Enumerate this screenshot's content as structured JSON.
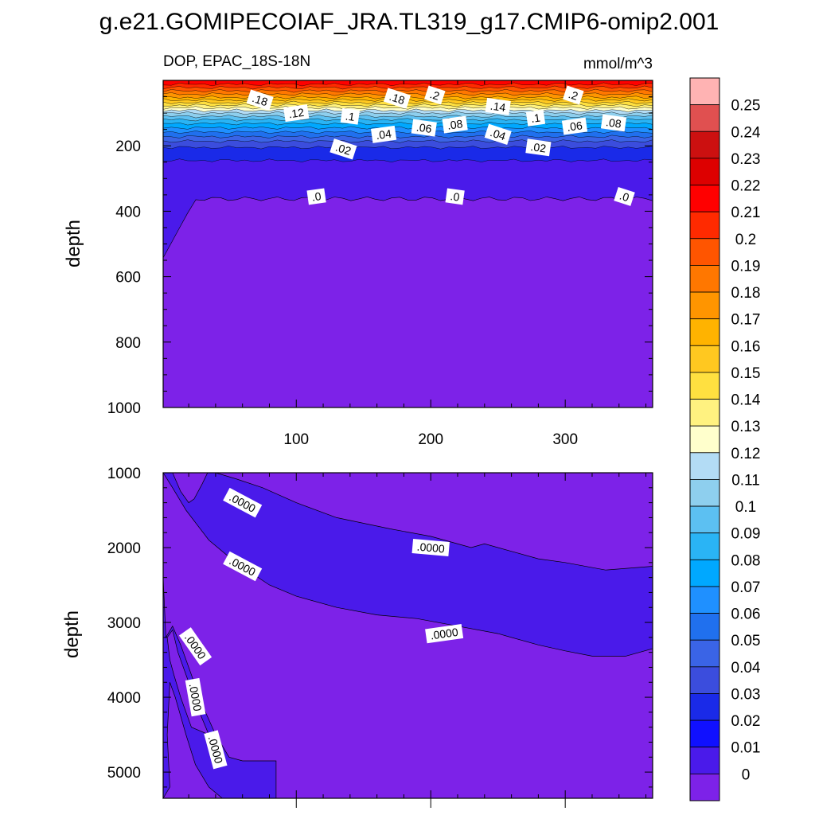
{
  "title": "g.e21.GOMIPECOIAF_JRA.TL319_g17.CMIP6-omip2.001",
  "colorbar": {
    "levels": [
      "0.25",
      "0.24",
      "0.23",
      "0.22",
      "0.21",
      "0.2",
      "0.19",
      "0.18",
      "0.17",
      "0.16",
      "0.15",
      "0.14",
      "0.13",
      "0.12",
      "0.11",
      "0.1",
      "0.09",
      "0.08",
      "0.07",
      "0.06",
      "0.05",
      "0.04",
      "0.03",
      "0.02",
      "0.01",
      "0"
    ],
    "colors": [
      "#ffb3b3",
      "#e05050",
      "#cc1010",
      "#dd0000",
      "#ff0000",
      "#ff2a00",
      "#ff5500",
      "#ff7700",
      "#ff9500",
      "#ffb300",
      "#ffc820",
      "#ffe040",
      "#fff280",
      "#ffffcc",
      "#b3dcf5",
      "#8ecfee",
      "#5cc0f2",
      "#2ab4f5",
      "#00a8ff",
      "#1f90ff",
      "#2070ee",
      "#3a64e6",
      "#3b4ddd",
      "#1a2ae8",
      "#1010ff",
      "#4a1aea",
      "#7d22e8"
    ]
  },
  "chart_data": [
    {
      "type": "contour",
      "name": "upper",
      "subtitle": "DOP, EPAC_18S-18N",
      "units": "mmol/m^3",
      "xlabel": "",
      "ylabel": "depth",
      "xlim": [
        1,
        365
      ],
      "ylim": [
        1000,
        0
      ],
      "xticks": [
        100,
        200,
        300
      ],
      "yticks": [
        200,
        400,
        600,
        800,
        1000
      ],
      "contour_labels": [
        {
          "text": ".18",
          "x": 73,
          "y": 60
        },
        {
          "text": ".12",
          "x": 100,
          "y": 100
        },
        {
          "text": ".1",
          "x": 140,
          "y": 110
        },
        {
          "text": ".18",
          "x": 175,
          "y": 55
        },
        {
          "text": ".04",
          "x": 165,
          "y": 165
        },
        {
          "text": ".06",
          "x": 195,
          "y": 145
        },
        {
          "text": ".2",
          "x": 203,
          "y": 45
        },
        {
          "text": ".08",
          "x": 218,
          "y": 135
        },
        {
          "text": ".14",
          "x": 250,
          "y": 80
        },
        {
          "text": ".04",
          "x": 250,
          "y": 165
        },
        {
          "text": ".1",
          "x": 278,
          "y": 115
        },
        {
          "text": ".02",
          "x": 280,
          "y": 205
        },
        {
          "text": ".2",
          "x": 306,
          "y": 45
        },
        {
          "text": ".06",
          "x": 307,
          "y": 140
        },
        {
          "text": ".08",
          "x": 336,
          "y": 130
        },
        {
          "text": ".02",
          "x": 135,
          "y": 210
        },
        {
          "text": ".0",
          "x": 115,
          "y": 355
        },
        {
          "text": ".0",
          "x": 218,
          "y": 355
        },
        {
          "text": ".0",
          "x": 344,
          "y": 355
        }
      ]
    },
    {
      "type": "contour",
      "name": "lower",
      "xlabel": "",
      "ylabel": "depth",
      "xlim": [
        1,
        365
      ],
      "ylim": [
        1000,
        5350
      ],
      "yticks": [
        1000,
        2000,
        3000,
        4000,
        5000
      ],
      "contour_labels": [
        {
          "text": ".0000",
          "x": 60,
          "y": 1400
        },
        {
          "text": ".0000",
          "x": 60,
          "y": 2250
        },
        {
          "text": ".0000",
          "x": 200,
          "y": 2000
        },
        {
          "text": ".0000",
          "x": 210,
          "y": 3150
        },
        {
          "text": ".0000",
          "x": 25,
          "y": 3320
        },
        {
          "text": ".0000",
          "x": 25,
          "y": 4000
        },
        {
          "text": ".0000",
          "x": 40,
          "y": 4700
        }
      ]
    }
  ]
}
